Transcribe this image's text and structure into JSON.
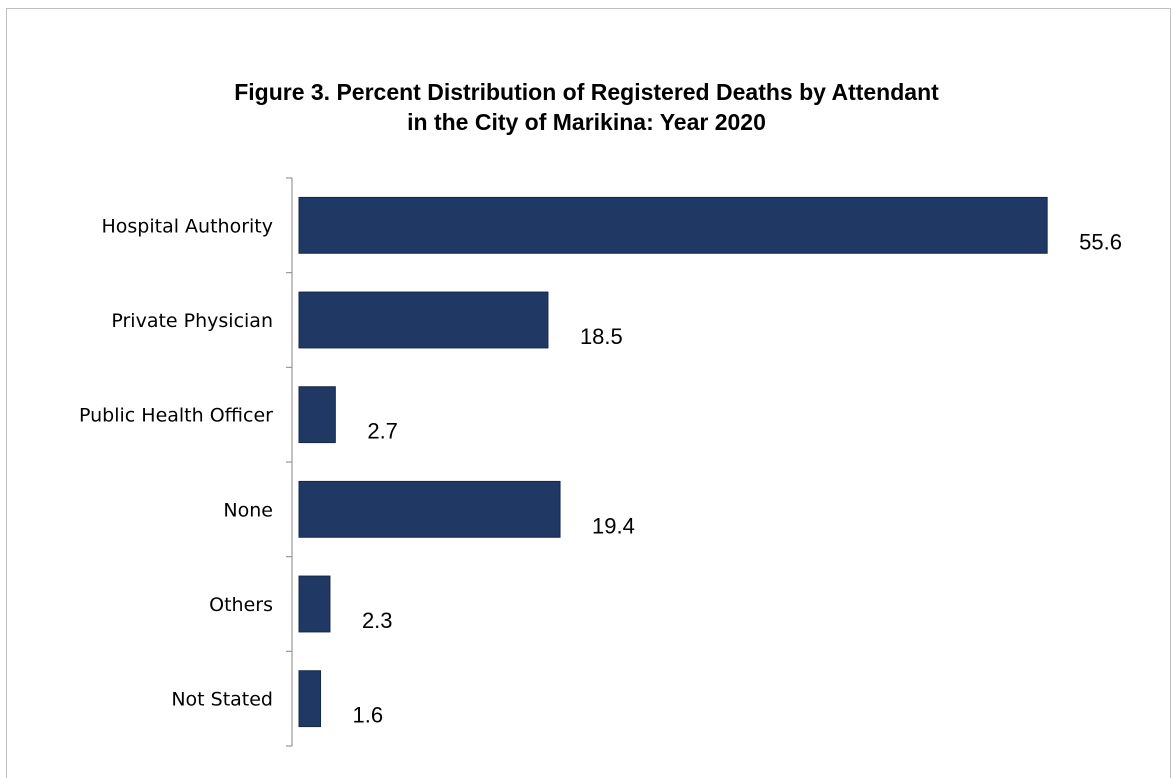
{
  "chart_data": {
    "type": "bar",
    "orientation": "horizontal",
    "title_lines": [
      "Figure 3. Percent Distribution of Registered Deaths by Attendant",
      "in the City of Marikina: Year 2020"
    ],
    "categories": [
      "Hospital Authority",
      "Private Physician",
      "Public Health Officer",
      "None",
      "Others",
      "Not Stated"
    ],
    "values": [
      55.6,
      18.5,
      2.7,
      19.4,
      2.3,
      1.6
    ],
    "value_labels": [
      "55.6",
      "18.5",
      "2.7",
      "19.4",
      "2.3",
      "1.6"
    ],
    "xlim": [
      0,
      57
    ],
    "bar_color": "#1f3864",
    "grid": false,
    "legend": "none"
  }
}
